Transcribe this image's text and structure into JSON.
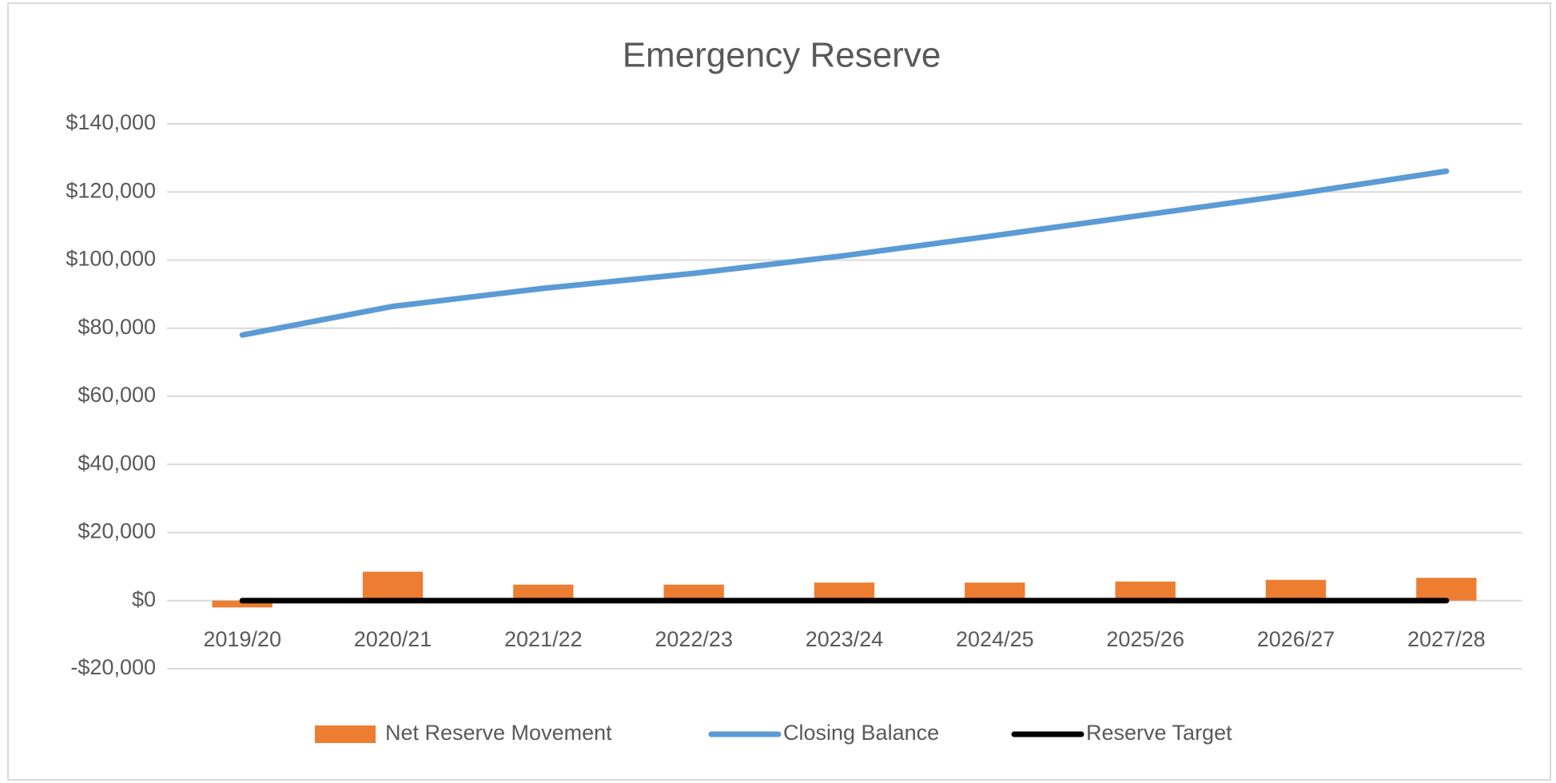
{
  "chart_data": {
    "type": "combo",
    "title": "Emergency Reserve",
    "categories": [
      "2019/20",
      "2020/21",
      "2021/22",
      "2022/23",
      "2023/24",
      "2024/25",
      "2025/26",
      "2026/27",
      "2027/28"
    ],
    "series": [
      {
        "name": "Net Reserve Movement",
        "type": "bar",
        "color": "#ed7d31",
        "values": [
          -2000,
          8500,
          4700,
          4700,
          5300,
          5300,
          5600,
          6100,
          6700
        ]
      },
      {
        "name": "Closing Balance",
        "type": "line",
        "color": "#5b9bd5",
        "values": [
          78000,
          86400,
          91700,
          96100,
          101300,
          107200,
          113300,
          119400,
          126100
        ]
      },
      {
        "name": "Reserve Target",
        "type": "line",
        "color": "#000000",
        "values": [
          0,
          0,
          0,
          0,
          0,
          0,
          0,
          0,
          0
        ]
      }
    ],
    "ylim": [
      -20000,
      140000
    ],
    "yticks": [
      {
        "value": -20000,
        "label": "-$20,000"
      },
      {
        "value": 0,
        "label": "$0"
      },
      {
        "value": 20000,
        "label": "$20,000"
      },
      {
        "value": 40000,
        "label": "$40,000"
      },
      {
        "value": 60000,
        "label": "$60,000"
      },
      {
        "value": 80000,
        "label": "$80,000"
      },
      {
        "value": 100000,
        "label": "$100,000"
      },
      {
        "value": 120000,
        "label": "$120,000"
      },
      {
        "value": 140000,
        "label": "$140,000"
      }
    ],
    "grid": true,
    "legend": "bottom"
  }
}
